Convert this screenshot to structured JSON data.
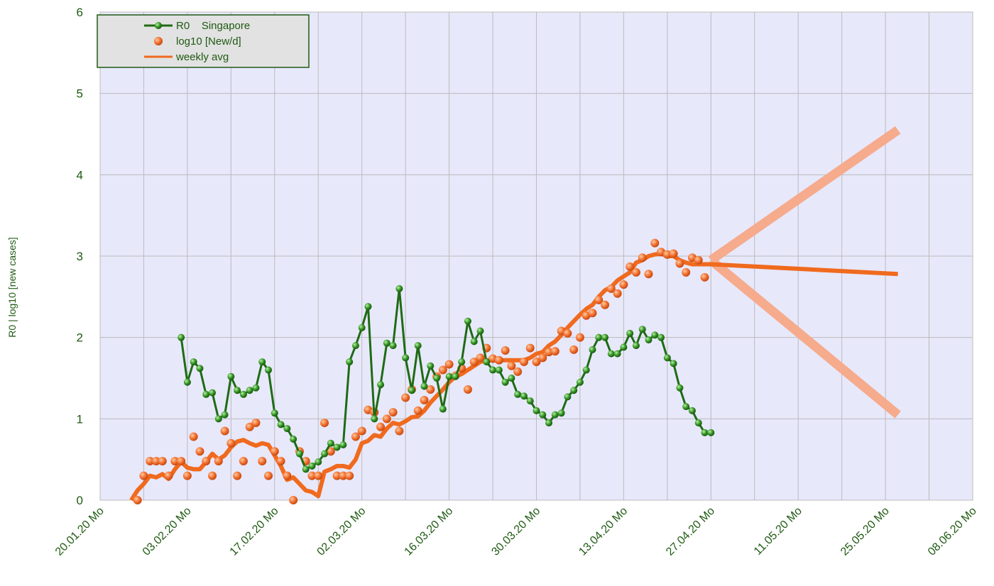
{
  "chart_data": {
    "type": "line",
    "y_label": "R0 | log10 [new cases]",
    "ylim": [
      0,
      6
    ],
    "yticks": [
      0,
      1,
      2,
      3,
      4,
      5,
      6
    ],
    "xlim": [
      "2020-01-20",
      "2020-06-08"
    ],
    "xticks": [
      {
        "value": "2020-01-20",
        "label": "20.01.20 Mo"
      },
      {
        "value": "2020-02-03",
        "label": "03.02.20 Mo"
      },
      {
        "value": "2020-02-17",
        "label": "17.02.20 Mo"
      },
      {
        "value": "2020-03-02",
        "label": "02.03.20 Mo"
      },
      {
        "value": "2020-03-16",
        "label": "16.03.20 Mo"
      },
      {
        "value": "2020-03-30",
        "label": "30.03.20 Mo"
      },
      {
        "value": "2020-04-13",
        "label": "13.04.20 Mo"
      },
      {
        "value": "2020-04-27",
        "label": "27.04.20 Mo"
      },
      {
        "value": "2020-05-11",
        "label": "11.05.20 Mo"
      },
      {
        "value": "2020-05-25",
        "label": "25.05.20 Mo"
      },
      {
        "value": "2020-06-08",
        "label": "08.06.20 Mo"
      }
    ],
    "grid": true,
    "legend": "top-left",
    "x": [
      "2020-01-25",
      "2020-01-26",
      "2020-01-27",
      "2020-01-28",
      "2020-01-29",
      "2020-01-30",
      "2020-01-31",
      "2020-02-01",
      "2020-02-02",
      "2020-02-03",
      "2020-02-04",
      "2020-02-05",
      "2020-02-06",
      "2020-02-07",
      "2020-02-08",
      "2020-02-09",
      "2020-02-10",
      "2020-02-11",
      "2020-02-12",
      "2020-02-13",
      "2020-02-14",
      "2020-02-15",
      "2020-02-16",
      "2020-02-17",
      "2020-02-18",
      "2020-02-19",
      "2020-02-20",
      "2020-02-21",
      "2020-02-22",
      "2020-02-23",
      "2020-02-24",
      "2020-02-25",
      "2020-02-26",
      "2020-02-27",
      "2020-02-28",
      "2020-02-29",
      "2020-03-01",
      "2020-03-02",
      "2020-03-03",
      "2020-03-04",
      "2020-03-05",
      "2020-03-06",
      "2020-03-07",
      "2020-03-08",
      "2020-03-09",
      "2020-03-10",
      "2020-03-11",
      "2020-03-12",
      "2020-03-13",
      "2020-03-14",
      "2020-03-15",
      "2020-03-16",
      "2020-03-17",
      "2020-03-18",
      "2020-03-19",
      "2020-03-20",
      "2020-03-21",
      "2020-03-22",
      "2020-03-23",
      "2020-03-24",
      "2020-03-25",
      "2020-03-26",
      "2020-03-27",
      "2020-03-28",
      "2020-03-29",
      "2020-03-30",
      "2020-03-31",
      "2020-04-01",
      "2020-04-02",
      "2020-04-03",
      "2020-04-04",
      "2020-04-05",
      "2020-04-06",
      "2020-04-07",
      "2020-04-08",
      "2020-04-09",
      "2020-04-10",
      "2020-04-11",
      "2020-04-12",
      "2020-04-13",
      "2020-04-14",
      "2020-04-15",
      "2020-04-16",
      "2020-04-17",
      "2020-04-18",
      "2020-04-19",
      "2020-04-20",
      "2020-04-21",
      "2020-04-22",
      "2020-04-23",
      "2020-04-24",
      "2020-04-25",
      "2020-04-26",
      "2020-04-27",
      "2020-05-27"
    ],
    "series": [
      {
        "name": "R0    Singapore",
        "color": "#1e6b14",
        "style": "line-marker",
        "values": [
          null,
          null,
          null,
          null,
          null,
          null,
          null,
          null,
          2.0,
          1.45,
          1.7,
          1.62,
          1.3,
          1.32,
          1.0,
          1.05,
          1.52,
          1.35,
          1.3,
          1.35,
          1.38,
          1.7,
          1.6,
          1.07,
          0.93,
          0.88,
          0.75,
          0.57,
          0.38,
          0.42,
          0.47,
          0.57,
          0.7,
          0.65,
          0.68,
          1.7,
          1.9,
          2.12,
          2.38,
          1.0,
          1.42,
          1.93,
          1.9,
          2.6,
          1.75,
          1.35,
          1.9,
          1.4,
          1.65,
          1.5,
          1.12,
          1.52,
          1.52,
          1.7,
          2.2,
          1.95,
          2.08,
          1.7,
          1.6,
          1.6,
          1.45,
          1.5,
          1.3,
          1.28,
          1.22,
          1.1,
          1.05,
          0.95,
          1.05,
          1.07,
          1.27,
          1.35,
          1.45,
          1.6,
          1.85,
          2.0,
          2.0,
          1.8,
          1.8,
          1.88,
          2.05,
          1.9,
          2.1,
          1.97,
          2.03,
          2.0,
          1.75,
          1.68,
          1.38,
          1.15,
          1.1,
          0.95,
          0.83,
          0.83,
          null
        ]
      },
      {
        "name": "log10 [New/d]",
        "color": "#f07030",
        "style": "dots",
        "values": [
          null,
          0.0,
          0.3,
          0.48,
          0.48,
          0.48,
          0.3,
          0.48,
          0.48,
          0.3,
          0.78,
          0.6,
          0.48,
          0.3,
          0.48,
          0.85,
          0.7,
          0.3,
          0.48,
          0.9,
          0.95,
          0.48,
          0.3,
          0.6,
          0.48,
          0.3,
          0.0,
          0.6,
          0.48,
          0.3,
          0.3,
          0.95,
          0.6,
          0.3,
          0.3,
          0.3,
          0.78,
          0.85,
          1.11,
          1.08,
          0.9,
          1.0,
          1.08,
          0.85,
          1.26,
          1.36,
          1.1,
          1.23,
          1.36,
          1.52,
          1.6,
          1.67,
          1.53,
          1.62,
          1.36,
          1.7,
          1.75,
          1.87,
          1.74,
          1.72,
          1.84,
          1.65,
          1.58,
          1.7,
          1.87,
          1.7,
          1.75,
          1.82,
          1.83,
          2.08,
          2.05,
          1.85,
          2.0,
          2.27,
          2.3,
          2.46,
          2.4,
          2.6,
          2.54,
          2.65,
          2.87,
          2.8,
          2.98,
          2.78,
          3.16,
          3.05,
          3.02,
          3.03,
          2.91,
          2.8,
          2.98,
          2.95,
          2.74,
          null,
          null
        ]
      },
      {
        "name": "weekly avg",
        "color": "#f06a1e",
        "style": "thick-line",
        "values": [
          0.0,
          0.12,
          0.2,
          0.3,
          0.28,
          0.32,
          0.26,
          0.38,
          0.47,
          0.4,
          0.38,
          0.38,
          0.47,
          0.57,
          0.5,
          0.55,
          0.65,
          0.72,
          0.74,
          0.7,
          0.67,
          0.7,
          0.68,
          0.55,
          0.42,
          0.25,
          0.28,
          0.2,
          0.12,
          0.1,
          0.05,
          0.35,
          0.38,
          0.42,
          0.42,
          0.4,
          0.5,
          0.7,
          0.73,
          0.8,
          0.78,
          0.88,
          0.95,
          0.93,
          0.97,
          1.02,
          1.03,
          1.1,
          1.2,
          1.28,
          1.36,
          1.45,
          1.52,
          1.55,
          1.6,
          1.65,
          1.7,
          1.72,
          1.72,
          1.72,
          1.72,
          1.72,
          1.72,
          1.72,
          1.75,
          1.8,
          1.82,
          1.9,
          1.95,
          2.03,
          2.12,
          2.2,
          2.28,
          2.35,
          2.4,
          2.5,
          2.58,
          2.62,
          2.7,
          2.75,
          2.8,
          2.92,
          2.95,
          3.0,
          3.02,
          3.03,
          3.0,
          3.0,
          2.95,
          2.92,
          2.9,
          2.9,
          2.9,
          2.9,
          2.78
        ]
      }
    ],
    "trend_lines": [
      {
        "color": "#f5ab8c",
        "x": [
          "2020-04-27",
          "2020-05-27"
        ],
        "values": [
          2.95,
          4.55
        ]
      },
      {
        "color": "#f5ab8c",
        "x": [
          "2020-04-27",
          "2020-05-27"
        ],
        "values": [
          2.95,
          1.05
        ]
      }
    ]
  }
}
